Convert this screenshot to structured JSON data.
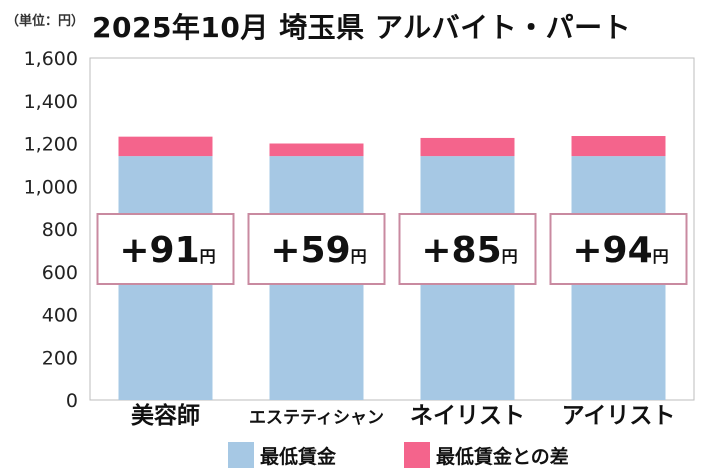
{
  "unit_label": "（単位：円）",
  "chart_data": {
    "type": "bar",
    "stacked": true,
    "title": "2025年10月 埼玉県 アルバイト・パート",
    "categories": [
      "美容師",
      "エステティシャン",
      "ネイリスト",
      "アイリスト"
    ],
    "series": [
      {
        "name": "最低賃金",
        "values": [
          1141,
          1141,
          1141,
          1141
        ],
        "color": "#a6c8e4"
      },
      {
        "name": "最低賃金との差",
        "values": [
          91,
          59,
          85,
          94
        ],
        "color": "#f4648c"
      }
    ],
    "data_labels": [
      "+91",
      "+59",
      "+85",
      "+94"
    ],
    "data_label_unit": "円",
    "ylim": [
      0,
      1600
    ],
    "yticks": [
      "0",
      "200",
      "400",
      "600",
      "800",
      "1,000",
      "1,200",
      "1,400",
      "1,600"
    ],
    "ytick_values": [
      0,
      200,
      400,
      600,
      800,
      1000,
      1200,
      1400,
      1600
    ],
    "legend_position": "bottom-center",
    "grid": false
  }
}
